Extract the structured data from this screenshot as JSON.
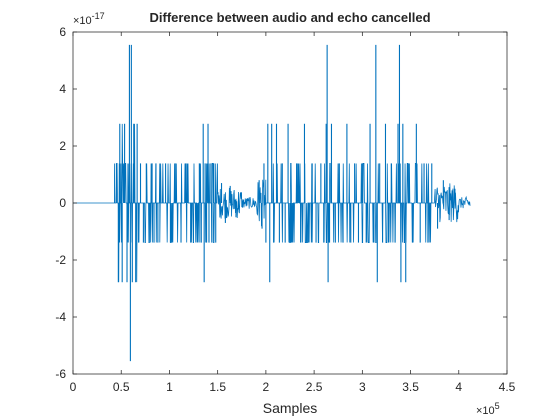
{
  "chart_data": {
    "type": "line",
    "title": "Difference between audio and echo cancelled",
    "xlabel": "Samples",
    "ylabel": "",
    "x_exponent_label": "×10",
    "x_exponent": "5",
    "y_exponent_label": "×10",
    "y_exponent": "-17",
    "xlim": [
      0,
      450000
    ],
    "ylim": [
      -6e-17,
      6e-17
    ],
    "x_ticks": [
      0,
      50000,
      100000,
      150000,
      200000,
      250000,
      300000,
      350000,
      400000,
      450000
    ],
    "x_tick_labels": [
      "0",
      "0.5",
      "1",
      "1.5",
      "2",
      "2.5",
      "3",
      "3.5",
      "4",
      "4.5"
    ],
    "y_ticks": [
      -6e-17,
      -4e-17,
      -2e-17,
      0,
      2e-17,
      4e-17,
      6e-17
    ],
    "y_tick_labels": [
      "-6",
      "-4",
      "-2",
      "0",
      "2",
      "4",
      "6"
    ],
    "grid": false,
    "legend": "none",
    "quantization_step": 1.3878e-17,
    "series": [
      {
        "color": "#0072BD",
        "segments": [
          {
            "x_start": 0,
            "x_end": 43000,
            "amplitude": 0
          },
          {
            "x_start": 43000,
            "x_end": 47000,
            "amplitude": 2
          },
          {
            "x_start": 47000,
            "x_end": 58000,
            "amplitude": 2
          },
          {
            "x_start": 58000,
            "x_end": 67000,
            "amplitude": 2
          },
          {
            "x_start": 67000,
            "x_end": 90000,
            "amplitude": 1
          },
          {
            "x_start": 90000,
            "x_end": 125000,
            "amplitude": 1
          },
          {
            "x_start": 125000,
            "x_end": 150000,
            "amplitude": 1
          },
          {
            "x_start": 150000,
            "x_end": 175000,
            "amplitude": 0.4
          },
          {
            "x_start": 175000,
            "x_end": 190000,
            "amplitude": 0.15
          },
          {
            "x_start": 190000,
            "x_end": 200000,
            "amplitude": 0.6
          },
          {
            "x_start": 200000,
            "x_end": 230000,
            "amplitude": 1
          },
          {
            "x_start": 230000,
            "x_end": 255000,
            "amplitude": 1
          },
          {
            "x_start": 255000,
            "x_end": 290000,
            "amplitude": 1
          },
          {
            "x_start": 290000,
            "x_end": 320000,
            "amplitude": 1
          },
          {
            "x_start": 320000,
            "x_end": 350000,
            "amplitude": 1
          },
          {
            "x_start": 350000,
            "x_end": 375000,
            "amplitude": 1
          },
          {
            "x_start": 375000,
            "x_end": 400000,
            "amplitude": 0.5
          },
          {
            "x_start": 400000,
            "x_end": 412000,
            "amplitude": 0.15
          }
        ],
        "spikes": [
          {
            "x": 45000,
            "y": 1.39e-17
          },
          {
            "x": 47000,
            "y": -2.78e-17
          },
          {
            "x": 48500,
            "y": 2.78e-17
          },
          {
            "x": 51000,
            "y": -2.78e-17
          },
          {
            "x": 53500,
            "y": 2.78e-17
          },
          {
            "x": 56000,
            "y": -2.78e-17
          },
          {
            "x": 58500,
            "y": 5.55e-17
          },
          {
            "x": 59500,
            "y": -5.55e-17
          },
          {
            "x": 60500,
            "y": 5.55e-17
          },
          {
            "x": 61500,
            "y": -2.78e-17
          },
          {
            "x": 63000,
            "y": 2.78e-17
          },
          {
            "x": 65000,
            "y": -2.78e-17
          },
          {
            "x": 66500,
            "y": 2.78e-17
          },
          {
            "x": 68000,
            "y": -1.39e-17
          },
          {
            "x": 70000,
            "y": 1.39e-17
          },
          {
            "x": 73000,
            "y": -1.39e-17
          },
          {
            "x": 76000,
            "y": 1.39e-17
          },
          {
            "x": 79000,
            "y": -1.39e-17
          },
          {
            "x": 82000,
            "y": 1.39e-17
          },
          {
            "x": 84000,
            "y": -1.39e-17
          },
          {
            "x": 86000,
            "y": 1.39e-17
          },
          {
            "x": 88000,
            "y": -1.39e-17
          },
          {
            "x": 96000,
            "y": 1.39e-17
          },
          {
            "x": 101000,
            "y": -1.39e-17
          },
          {
            "x": 106000,
            "y": 1.39e-17
          },
          {
            "x": 112000,
            "y": -1.39e-17
          },
          {
            "x": 117000,
            "y": 1.39e-17
          },
          {
            "x": 122000,
            "y": -1.39e-17
          },
          {
            "x": 131000,
            "y": 1.39e-17
          },
          {
            "x": 133000,
            "y": -1.39e-17
          },
          {
            "x": 135000,
            "y": 2.78e-17
          },
          {
            "x": 136000,
            "y": -2.78e-17
          },
          {
            "x": 137000,
            "y": 1.39e-17
          },
          {
            "x": 138500,
            "y": -1.39e-17
          },
          {
            "x": 140000,
            "y": 2.78e-17
          },
          {
            "x": 141000,
            "y": -1.39e-17
          },
          {
            "x": 143000,
            "y": 1.39e-17
          },
          {
            "x": 144000,
            "y": -1.39e-17
          },
          {
            "x": 146000,
            "y": 1.39e-17
          },
          {
            "x": 148000,
            "y": -1.39e-17
          },
          {
            "x": 154000,
            "y": 7e-18
          },
          {
            "x": 158000,
            "y": -7e-18
          },
          {
            "x": 163000,
            "y": 6e-18
          },
          {
            "x": 169000,
            "y": -5e-18
          },
          {
            "x": 193000,
            "y": 8e-18
          },
          {
            "x": 196000,
            "y": -9e-18
          },
          {
            "x": 198000,
            "y": 1.39e-17
          },
          {
            "x": 200000,
            "y": -1.39e-17
          },
          {
            "x": 202000,
            "y": 2.78e-17
          },
          {
            "x": 204000,
            "y": -2.78e-17
          },
          {
            "x": 206000,
            "y": 2.78e-17
          },
          {
            "x": 208000,
            "y": -1.39e-17
          },
          {
            "x": 211000,
            "y": 2.78e-17
          },
          {
            "x": 214000,
            "y": -1.39e-17
          },
          {
            "x": 217000,
            "y": 1.39e-17
          },
          {
            "x": 220000,
            "y": -1.39e-17
          },
          {
            "x": 223000,
            "y": 2.78e-17
          },
          {
            "x": 226000,
            "y": -1.39e-17
          },
          {
            "x": 232000,
            "y": 1.39e-17
          },
          {
            "x": 236000,
            "y": -1.39e-17
          },
          {
            "x": 240000,
            "y": 2.78e-17
          },
          {
            "x": 244000,
            "y": -1.39e-17
          },
          {
            "x": 248000,
            "y": 1.39e-17
          },
          {
            "x": 252000,
            "y": -1.39e-17
          },
          {
            "x": 257000,
            "y": 1.39e-17
          },
          {
            "x": 260000,
            "y": -1.39e-17
          },
          {
            "x": 262500,
            "y": 2.78e-17
          },
          {
            "x": 263500,
            "y": 5.55e-17
          },
          {
            "x": 264500,
            "y": -2.78e-17
          },
          {
            "x": 266000,
            "y": -1.39e-17
          },
          {
            "x": 268000,
            "y": 2.78e-17
          },
          {
            "x": 272000,
            "y": -1.39e-17
          },
          {
            "x": 276000,
            "y": 1.39e-17
          },
          {
            "x": 280000,
            "y": -1.39e-17
          },
          {
            "x": 284000,
            "y": 2.78e-17
          },
          {
            "x": 288000,
            "y": -1.39e-17
          },
          {
            "x": 292000,
            "y": 1.39e-17
          },
          {
            "x": 296000,
            "y": -1.39e-17
          },
          {
            "x": 300000,
            "y": 1.39e-17
          },
          {
            "x": 304000,
            "y": -1.39e-17
          },
          {
            "x": 308000,
            "y": 2.78e-17
          },
          {
            "x": 312000,
            "y": -1.39e-17
          },
          {
            "x": 314000,
            "y": 5.55e-17
          },
          {
            "x": 315500,
            "y": -2.78e-17
          },
          {
            "x": 318000,
            "y": 1.39e-17
          },
          {
            "x": 321000,
            "y": -1.39e-17
          },
          {
            "x": 324000,
            "y": 2.78e-17
          },
          {
            "x": 327000,
            "y": -1.39e-17
          },
          {
            "x": 330000,
            "y": 1.39e-17
          },
          {
            "x": 334000,
            "y": -1.39e-17
          },
          {
            "x": 337000,
            "y": 2.78e-17
          },
          {
            "x": 338500,
            "y": 5.55e-17
          },
          {
            "x": 340000,
            "y": -2.78e-17
          },
          {
            "x": 342000,
            "y": 2.78e-17
          },
          {
            "x": 345000,
            "y": -2.78e-17
          },
          {
            "x": 348000,
            "y": 1.39e-17
          },
          {
            "x": 352000,
            "y": -1.39e-17
          },
          {
            "x": 356000,
            "y": 2.78e-17
          },
          {
            "x": 360000,
            "y": -1.39e-17
          },
          {
            "x": 364000,
            "y": 1.39e-17
          },
          {
            "x": 368000,
            "y": -1.39e-17
          },
          {
            "x": 372000,
            "y": 1.39e-17
          },
          {
            "x": 378000,
            "y": -9e-18
          },
          {
            "x": 384000,
            "y": 8e-18
          },
          {
            "x": 390000,
            "y": -6e-18
          },
          {
            "x": 396000,
            "y": 5e-18
          }
        ]
      }
    ]
  }
}
